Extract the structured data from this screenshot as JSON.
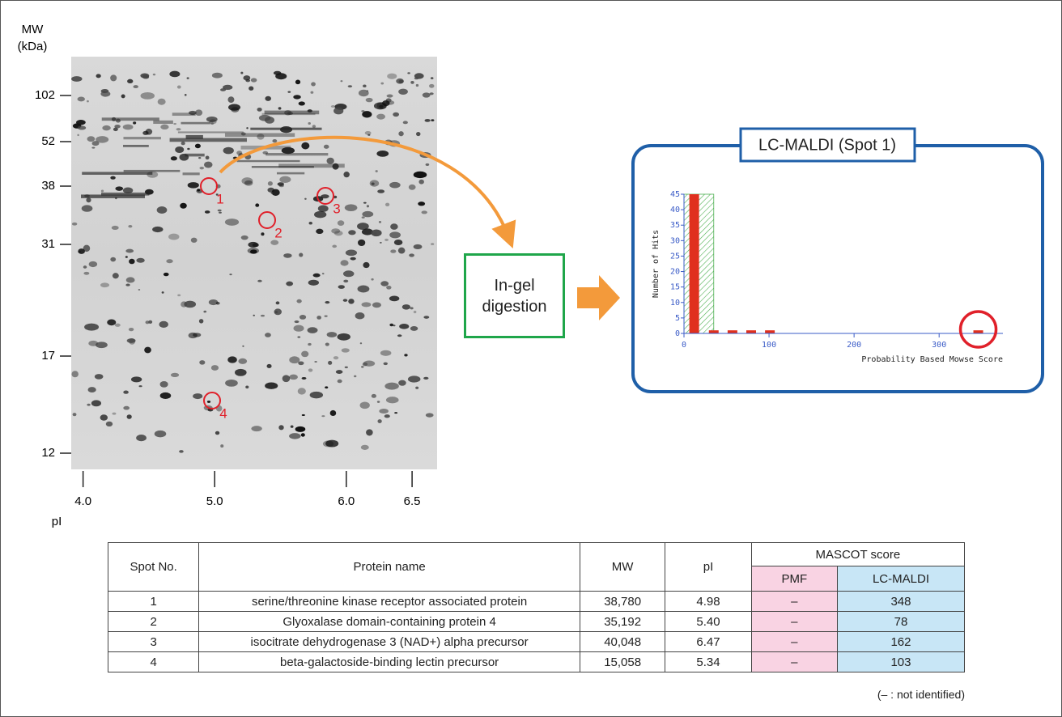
{
  "gel": {
    "y_title": "MW",
    "y_unit": "(kDa)",
    "yticks": [
      102,
      52,
      38,
      31,
      17,
      12
    ],
    "x_title": "pI",
    "xlim": [
      3.91,
      6.69
    ],
    "xticks": [
      {
        "value": 4.0,
        "label": "4.0"
      },
      {
        "value": 5.0,
        "label": "5.0"
      },
      {
        "value": 6.0,
        "label": "6.0"
      },
      {
        "value": 6.5,
        "label": "6.5"
      }
    ],
    "spots": [
      "1",
      "2",
      "3",
      "4"
    ]
  },
  "step": "In-gel digestion",
  "chart_data": {
    "type": "bar",
    "title": "LC-MALDI (Spot 1)",
    "y_label": "Number of Hits",
    "x_label": "Probability Based Mowse Score",
    "x": [
      12,
      35,
      57,
      79,
      101,
      346
    ],
    "values": [
      45,
      1,
      1,
      1,
      1,
      1
    ],
    "color": "#e0301e",
    "threshold": 35,
    "threshold_color": "#4caf50",
    "xlim": [
      0,
      375
    ],
    "xticks": [
      0,
      100,
      200,
      300
    ],
    "ylim": [
      0,
      45
    ],
    "yticks": [
      0,
      5,
      10,
      15,
      20,
      25,
      30,
      35,
      40,
      45
    ]
  },
  "table": {
    "header": [
      "Spot No.",
      "Protein name",
      "MW",
      "pI",
      "MASCOT score"
    ],
    "subheader": [
      "PMF",
      "LC-MALDI"
    ],
    "rows": [
      [
        "1",
        "serine/threonine kinase receptor associated protein",
        "38,780",
        "4.98",
        "–",
        "348"
      ],
      [
        "2",
        "Glyoxalase domain-containing protein 4",
        "35,192",
        "5.40",
        "–",
        "78"
      ],
      [
        "3",
        "isocitrate dehydrogenase 3 (NAD+) alpha precursor",
        "40,048",
        "6.47",
        "–",
        "162"
      ],
      [
        "4",
        "beta-galactoside-binding lectin precursor",
        "15,058",
        "5.34",
        "–",
        "103"
      ]
    ]
  },
  "footnote": "(– : not identified)"
}
